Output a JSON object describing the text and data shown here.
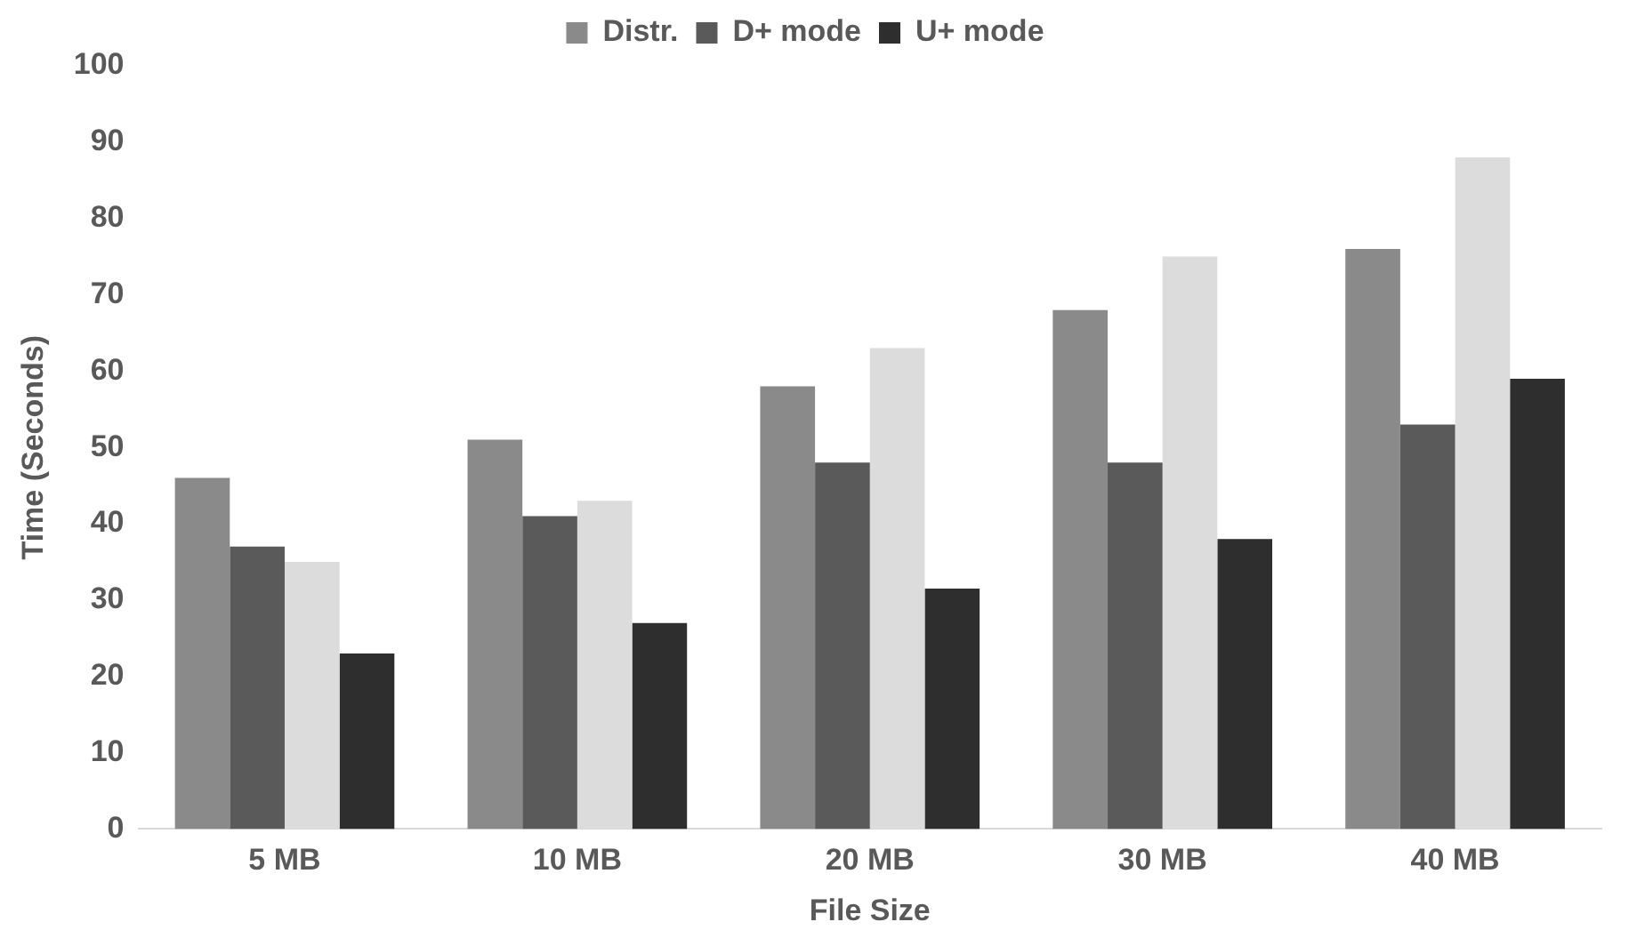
{
  "chart_data": {
    "type": "bar",
    "xlabel": "File Size",
    "ylabel": "Time (Seconds)",
    "categories": [
      "5 MB",
      "10 MB",
      "20 MB",
      "30 MB",
      "40 MB"
    ],
    "series": [
      {
        "name": "Distr.",
        "color": "#8a8a8a",
        "values": [
          46,
          51,
          58,
          68,
          76
        ]
      },
      {
        "name": "D+ mode",
        "color": "#5a5a5a",
        "values": [
          37,
          41,
          48,
          48,
          53
        ]
      },
      {
        "color": "#dcdcdc",
        "values": [
          35,
          43,
          63,
          75,
          88
        ]
      },
      {
        "name": "U+ mode",
        "color": "#2e2e2e",
        "values": [
          23,
          27,
          31.5,
          38,
          59
        ]
      }
    ],
    "ylim": [
      0,
      100
    ],
    "yticks": [
      0,
      10,
      20,
      30,
      40,
      50,
      60,
      70,
      80,
      90,
      100
    ],
    "legend": "top"
  }
}
